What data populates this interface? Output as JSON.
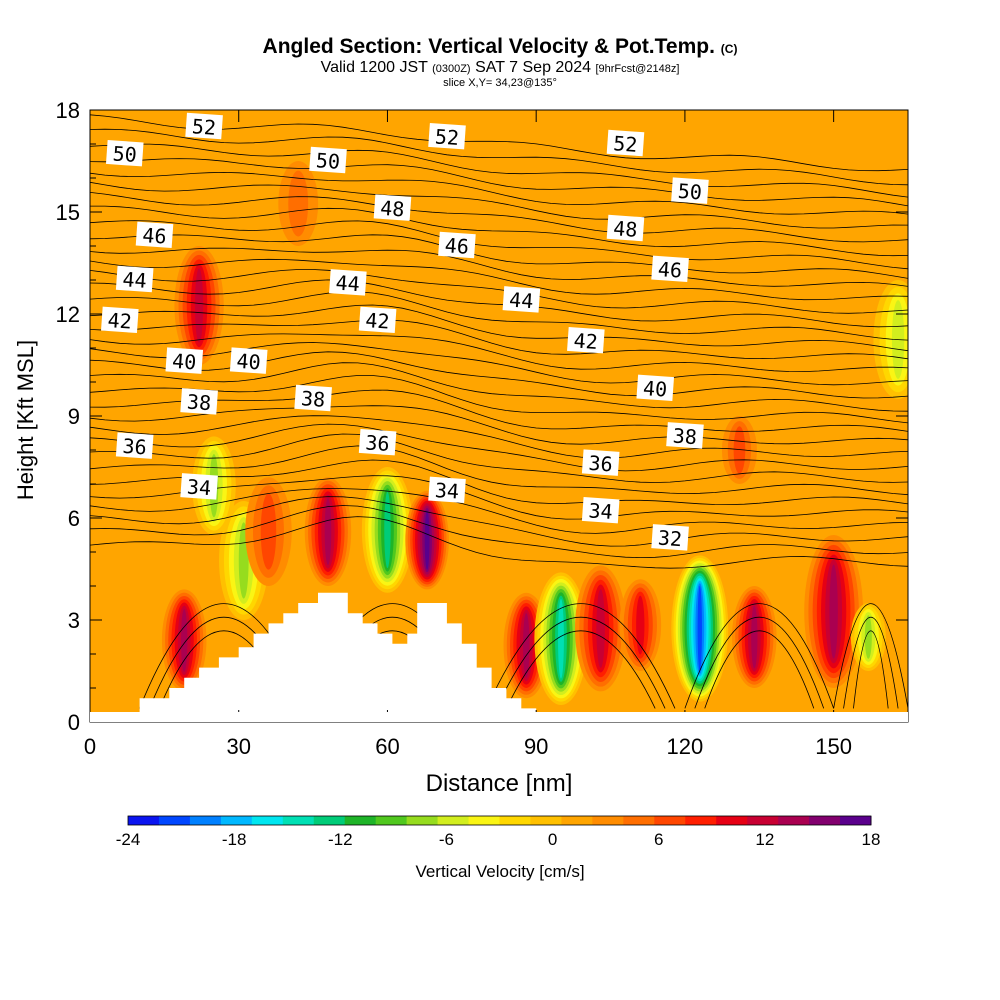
{
  "title": {
    "main": "Angled Section: Vertical Velocity & Pot.Temp.",
    "copyright": "(C)",
    "valid_prefix": "Valid 1200 JST",
    "utc": "(0300Z)",
    "valid_date": "SAT 7 Sep 2024",
    "forecast": "[9hrFcst@2148z]",
    "slice": "slice X,Y= 34,23@135°"
  },
  "chart_data": {
    "type": "heatmap",
    "xlabel": "Distance [nm]",
    "ylabel": "Height [Kft MSL]",
    "xlim": [
      0,
      165
    ],
    "ylim": [
      0,
      18
    ],
    "xticks": [
      0,
      30,
      60,
      90,
      120,
      150
    ],
    "yticks": [
      0,
      3,
      6,
      9,
      12,
      15,
      18
    ],
    "background_field_value": 1,
    "vertical_velocity_cells": [
      {
        "x": 19,
        "z0": 0.9,
        "z1": 3.9,
        "w": 13
      },
      {
        "x": 22,
        "z0": 10.5,
        "z1": 14,
        "w": 11
      },
      {
        "x": 25,
        "z0": 5.5,
        "z1": 8.4,
        "w": -9
      },
      {
        "x": 31,
        "z0": 3,
        "z1": 6.5,
        "w": -8
      },
      {
        "x": 36,
        "z0": 4,
        "z1": 7.2,
        "w": 6
      },
      {
        "x": 48,
        "z0": 4,
        "z1": 7.2,
        "w": 12
      },
      {
        "x": 60,
        "z0": 3.8,
        "z1": 7.5,
        "w": -14
      },
      {
        "x": 68,
        "z0": 3.9,
        "z1": 6.8,
        "w": 16
      },
      {
        "x": 88,
        "z0": 0.7,
        "z1": 3.8,
        "w": 12
      },
      {
        "x": 95,
        "z0": 0.5,
        "z1": 4.4,
        "w": -16
      },
      {
        "x": 103,
        "z0": 0.9,
        "z1": 4.6,
        "w": 11
      },
      {
        "x": 111,
        "z0": 1.5,
        "z1": 4.2,
        "w": 8
      },
      {
        "x": 123,
        "z0": 0.6,
        "z1": 4.9,
        "w": -22
      },
      {
        "x": 134,
        "z0": 1,
        "z1": 4,
        "w": 12
      },
      {
        "x": 150,
        "z0": 1,
        "z1": 5.5,
        "w": 13
      },
      {
        "x": 157,
        "z0": 1.5,
        "z1": 3.5,
        "w": -8
      },
      {
        "x": 163,
        "z0": 9.5,
        "z1": 13,
        "w": -7
      },
      {
        "x": 42,
        "z0": 14,
        "z1": 16.5,
        "w": 4
      },
      {
        "x": 131,
        "z0": 7,
        "z1": 9,
        "w": 5
      }
    ],
    "terrain_profile": [
      {
        "x": 0,
        "z": 0
      },
      {
        "x": 10,
        "z": 0
      },
      {
        "x": 10,
        "z": 0.7
      },
      {
        "x": 16,
        "z": 0.7
      },
      {
        "x": 16,
        "z": 1
      },
      {
        "x": 19,
        "z": 1
      },
      {
        "x": 19,
        "z": 1.3
      },
      {
        "x": 22,
        "z": 1.3
      },
      {
        "x": 22,
        "z": 1.6
      },
      {
        "x": 26,
        "z": 1.6
      },
      {
        "x": 26,
        "z": 1.9
      },
      {
        "x": 30,
        "z": 1.9
      },
      {
        "x": 30,
        "z": 2.2
      },
      {
        "x": 33,
        "z": 2.2
      },
      {
        "x": 33,
        "z": 2.6
      },
      {
        "x": 36,
        "z": 2.6
      },
      {
        "x": 36,
        "z": 2.9
      },
      {
        "x": 39,
        "z": 2.9
      },
      {
        "x": 39,
        "z": 3.2
      },
      {
        "x": 42,
        "z": 3.2
      },
      {
        "x": 42,
        "z": 3.5
      },
      {
        "x": 46,
        "z": 3.5
      },
      {
        "x": 46,
        "z": 3.8
      },
      {
        "x": 52,
        "z": 3.8
      },
      {
        "x": 52,
        "z": 3.2
      },
      {
        "x": 55,
        "z": 3.2
      },
      {
        "x": 55,
        "z": 2.9
      },
      {
        "x": 58,
        "z": 2.9
      },
      {
        "x": 58,
        "z": 2.6
      },
      {
        "x": 61,
        "z": 2.6
      },
      {
        "x": 61,
        "z": 2.3
      },
      {
        "x": 64,
        "z": 2.3
      },
      {
        "x": 64,
        "z": 2.6
      },
      {
        "x": 66,
        "z": 2.6
      },
      {
        "x": 66,
        "z": 3.5
      },
      {
        "x": 72,
        "z": 3.5
      },
      {
        "x": 72,
        "z": 2.9
      },
      {
        "x": 75,
        "z": 2.9
      },
      {
        "x": 75,
        "z": 2.3
      },
      {
        "x": 78,
        "z": 2.3
      },
      {
        "x": 78,
        "z": 1.6
      },
      {
        "x": 81,
        "z": 1.6
      },
      {
        "x": 81,
        "z": 1
      },
      {
        "x": 84,
        "z": 1
      },
      {
        "x": 84,
        "z": 0.7
      },
      {
        "x": 87,
        "z": 0.7
      },
      {
        "x": 87,
        "z": 0.4
      },
      {
        "x": 90,
        "z": 0.4
      },
      {
        "x": 90,
        "z": 0
      }
    ],
    "potential_temperature_labels": [
      {
        "x": 7,
        "z": 16.7,
        "label": "50"
      },
      {
        "x": 23,
        "z": 17.5,
        "label": "52"
      },
      {
        "x": 48,
        "z": 16.5,
        "label": "50"
      },
      {
        "x": 72,
        "z": 17.2,
        "label": "52"
      },
      {
        "x": 108,
        "z": 17,
        "label": "52"
      },
      {
        "x": 121,
        "z": 15.6,
        "label": "50"
      },
      {
        "x": 61,
        "z": 15.1,
        "label": "48"
      },
      {
        "x": 108,
        "z": 14.5,
        "label": "48"
      },
      {
        "x": 13,
        "z": 14.3,
        "label": "46"
      },
      {
        "x": 74,
        "z": 14,
        "label": "46"
      },
      {
        "x": 117,
        "z": 13.3,
        "label": "46"
      },
      {
        "x": 9,
        "z": 13,
        "label": "44"
      },
      {
        "x": 52,
        "z": 12.9,
        "label": "44"
      },
      {
        "x": 87,
        "z": 12.4,
        "label": "44"
      },
      {
        "x": 6,
        "z": 11.8,
        "label": "42"
      },
      {
        "x": 58,
        "z": 11.8,
        "label": "42"
      },
      {
        "x": 100,
        "z": 11.2,
        "label": "42"
      },
      {
        "x": 19,
        "z": 10.6,
        "label": "40"
      },
      {
        "x": 32,
        "z": 10.6,
        "label": "40"
      },
      {
        "x": 114,
        "z": 9.8,
        "label": "40"
      },
      {
        "x": 22,
        "z": 9.4,
        "label": "38"
      },
      {
        "x": 45,
        "z": 9.5,
        "label": "38"
      },
      {
        "x": 120,
        "z": 8.4,
        "label": "38"
      },
      {
        "x": 9,
        "z": 8.1,
        "label": "36"
      },
      {
        "x": 58,
        "z": 8.2,
        "label": "36"
      },
      {
        "x": 103,
        "z": 7.6,
        "label": "36"
      },
      {
        "x": 22,
        "z": 6.9,
        "label": "34"
      },
      {
        "x": 72,
        "z": 6.8,
        "label": "34"
      },
      {
        "x": 103,
        "z": 6.2,
        "label": "34"
      },
      {
        "x": 117,
        "z": 5.4,
        "label": "32"
      }
    ],
    "colorbar": {
      "label": "Vertical Velocity [cm/s]",
      "min": -24,
      "max": 18,
      "ticks": [
        "-24",
        "-18",
        "-12",
        "-6",
        "0",
        "6",
        "12",
        "18"
      ],
      "colors": [
        "#0a14f0",
        "#0046ff",
        "#0080ff",
        "#00b8ff",
        "#00e6f0",
        "#00e0b4",
        "#00cc78",
        "#1eb428",
        "#50c81e",
        "#96dc1e",
        "#d2ee1e",
        "#faf514",
        "#ffd700",
        "#ffc000",
        "#ffa500",
        "#ff8c00",
        "#ff6e00",
        "#ff4600",
        "#ff1e00",
        "#e60014",
        "#c80032",
        "#aa0050",
        "#82006e",
        "#5a008c"
      ]
    }
  }
}
